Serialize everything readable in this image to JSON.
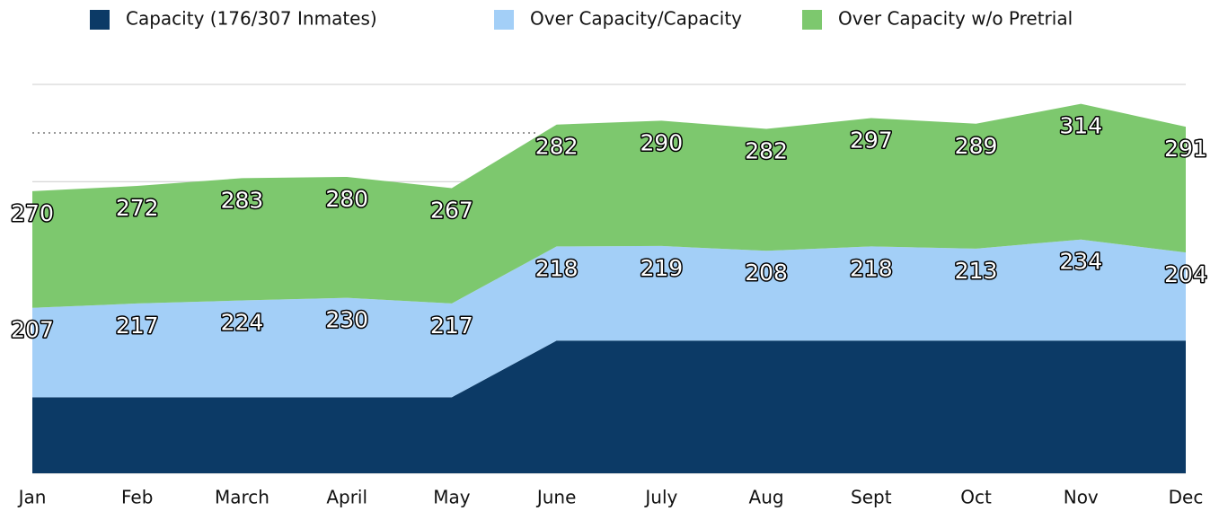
{
  "chart_data": {
    "type": "stacked-area",
    "categories": [
      "Jan",
      "Feb",
      "March",
      "April",
      "May",
      "June",
      "July",
      "Aug",
      "Sept",
      "Oct",
      "Nov",
      "Dec"
    ],
    "series": [
      {
        "name": "Capacity (176/307 Inmates)",
        "color": "#0c3a66",
        "values": [
          176,
          176,
          176,
          176,
          176,
          307,
          307,
          307,
          307,
          307,
          307,
          307
        ]
      },
      {
        "name": "Over Capacity/Capacity",
        "color": "#a3cff7",
        "values": [
          207,
          217,
          224,
          230,
          217,
          218,
          219,
          208,
          218,
          213,
          234,
          204
        ],
        "labels": true
      },
      {
        "name": "Over Capacity w/o Pretrial",
        "color": "#7dc86e",
        "values": [
          270,
          272,
          283,
          280,
          267,
          282,
          290,
          282,
          297,
          289,
          314,
          291
        ],
        "labels": true
      }
    ],
    "ylim": [
      0,
      900
    ],
    "yticks": [
      0,
      225,
      450,
      675,
      900
    ],
    "grid": true
  }
}
